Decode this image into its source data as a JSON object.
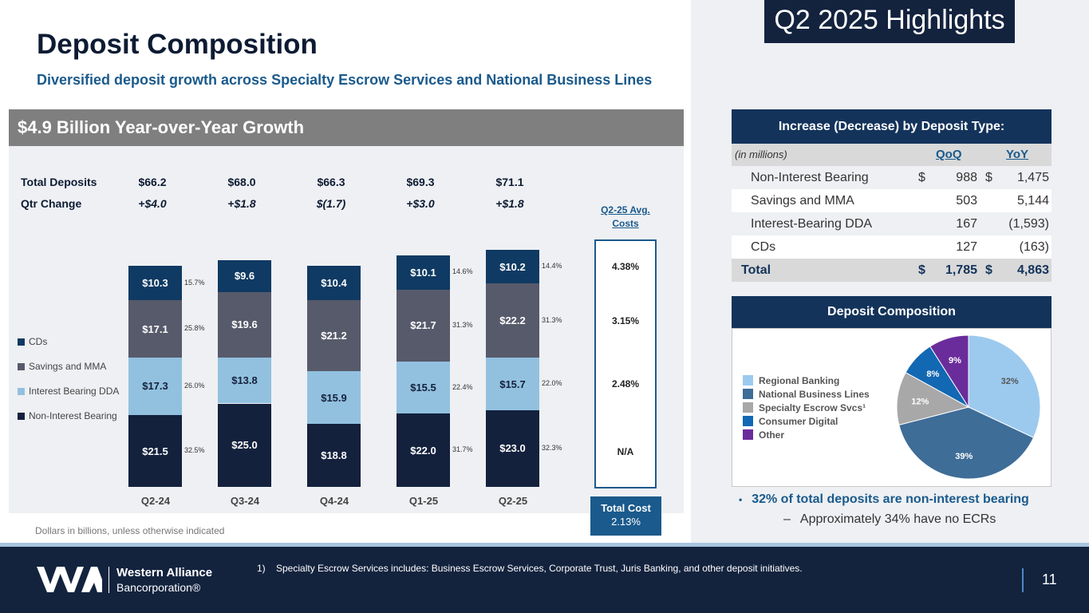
{
  "header": {
    "badge": "Q2 2025 Highlights",
    "title": "Deposit Composition",
    "subtitle": "Diversified deposit growth across Specialty Escrow Services and National Business Lines"
  },
  "chart_panel": {
    "banner": "$4.9 Billion Year-over-Year Growth",
    "total_label": "Total Deposits",
    "change_label": "Qtr Change",
    "totals": [
      "$66.2",
      "$68.0",
      "$66.3",
      "$69.3",
      "$71.1"
    ],
    "changes": [
      "+$4.0",
      "+$1.8",
      "$(1.7)",
      "+$3.0",
      "+$1.8"
    ],
    "note": "Dollars in billions, unless otherwise indicated"
  },
  "chart_data": {
    "type": "bar",
    "stacked": true,
    "title": "$4.9 Billion Year-over-Year Growth",
    "categories": [
      "Q2-24",
      "Q3-24",
      "Q4-24",
      "Q1-25",
      "Q2-25"
    ],
    "series": [
      {
        "name": "Non-Interest Bearing",
        "color": "#13213d",
        "text_color": "#ffffff",
        "values": [
          21.5,
          25.0,
          18.8,
          22.0,
          23.0
        ],
        "labels": [
          "$21.5",
          "$25.0",
          "$18.8",
          "$22.0",
          "$23.0"
        ],
        "pct": [
          "32.5%",
          "",
          "",
          "31.7%",
          "32.3%"
        ]
      },
      {
        "name": "Interest Bearing DDA",
        "color": "#92c1df",
        "text_color": "#13213d",
        "values": [
          17.3,
          13.8,
          15.9,
          15.5,
          15.7
        ],
        "labels": [
          "$17.3",
          "$13.8",
          "$15.9",
          "$15.5",
          "$15.7"
        ],
        "pct": [
          "26.0%",
          "",
          "",
          "22.4%",
          "22.0%"
        ]
      },
      {
        "name": "Savings and MMA",
        "color": "#575a6b",
        "text_color": "#ffffff",
        "values": [
          17.1,
          19.6,
          21.2,
          21.7,
          22.2
        ],
        "labels": [
          "$17.1",
          "$19.6",
          "$21.2",
          "$21.7",
          "$22.2"
        ],
        "pct": [
          "25.8%",
          "",
          "",
          "31.3%",
          "31.3%"
        ]
      },
      {
        "name": "CDs",
        "color": "#0f3a63",
        "text_color": "#ffffff",
        "values": [
          10.3,
          9.6,
          10.4,
          10.1,
          10.2
        ],
        "labels": [
          "$10.3",
          "$9.6",
          "$10.4",
          "$10.1",
          "$10.2"
        ],
        "pct": [
          "15.7%",
          "",
          "",
          "14.6%",
          "14.4%"
        ]
      }
    ],
    "legend": [
      "CDs",
      "Savings and MMA",
      "Interest Bearing DDA",
      "Non-Interest Bearing"
    ],
    "xlabel": "",
    "ylabel": ""
  },
  "costs": {
    "heading": "Q2-25 Avg. Costs",
    "values": [
      "4.38%",
      "3.15%",
      "2.48%",
      "N/A"
    ],
    "total_label": "Total Cost",
    "total_value": "2.13%"
  },
  "deposit_table": {
    "banner": "Increase (Decrease) by Deposit Type:",
    "unit": "(in millions)",
    "col_qoq": "QoQ",
    "col_yoy": "YoY",
    "rows": [
      {
        "label": "Non-Interest Bearing",
        "cur1": "$",
        "qoq": "988",
        "cur2": "$",
        "yoy": "1,475"
      },
      {
        "label": "Savings and MMA",
        "cur1": "",
        "qoq": "503",
        "cur2": "",
        "yoy": "5,144"
      },
      {
        "label": "Interest-Bearing DDA",
        "cur1": "",
        "qoq": "167",
        "cur2": "",
        "yoy": "(1,593)"
      },
      {
        "label": "CDs",
        "cur1": "",
        "qoq": "127",
        "cur2": "",
        "yoy": "(163)"
      }
    ],
    "total": {
      "label": "Total",
      "cur1": "$",
      "qoq": "1,785",
      "cur2": "$",
      "yoy": "4,863"
    }
  },
  "composition": {
    "banner": "Deposit Composition",
    "slices": [
      {
        "name": "Regional Banking",
        "value": 32,
        "label": "32%",
        "color": "#9ccaef",
        "text_color": "#555555"
      },
      {
        "name": "National Business Lines",
        "value": 39,
        "label": "39%",
        "color": "#3e6d98",
        "text_color": "#ffffff"
      },
      {
        "name": "Specialty Escrow Svcs¹",
        "value": 12,
        "label": "12%",
        "color": "#a8a8a8",
        "text_color": "#ffffff"
      },
      {
        "name": "Consumer Digital",
        "value": 8,
        "label": "8%",
        "color": "#1368b3",
        "text_color": "#ffffff"
      },
      {
        "name": "Other",
        "value": 9,
        "label": "9%",
        "color": "#6a2c9b",
        "text_color": "#ffffff"
      }
    ]
  },
  "bullets": {
    "main": "32% of total deposits are non-interest bearing",
    "sub": "Approximately 34% have no ECRs"
  },
  "footer": {
    "company": "Western Alliance",
    "company_sub": "Bancorporation®",
    "footnote": "1)    Specialty Escrow Services includes:  Business Escrow Services, Corporate Trust, Juris Banking, and other deposit initiatives.",
    "page_number": "11"
  }
}
